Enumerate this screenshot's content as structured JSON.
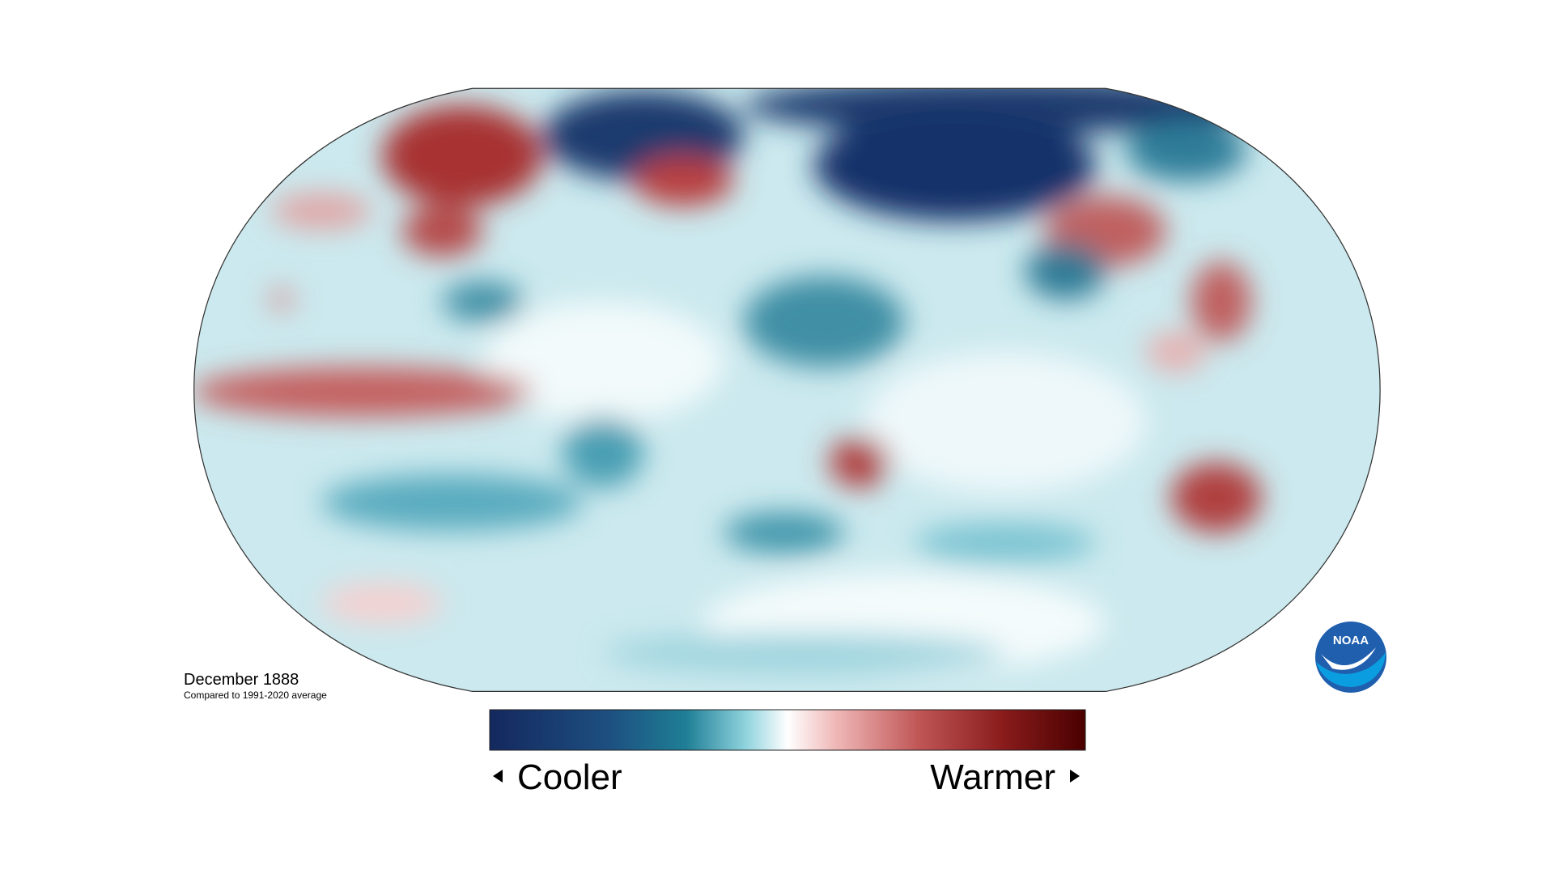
{
  "title": "December 1888",
  "subtitle": "Compared to 1991-2020 average",
  "legend": {
    "low": "Cooler",
    "high": "Warmer"
  },
  "logo": "NOAA"
}
